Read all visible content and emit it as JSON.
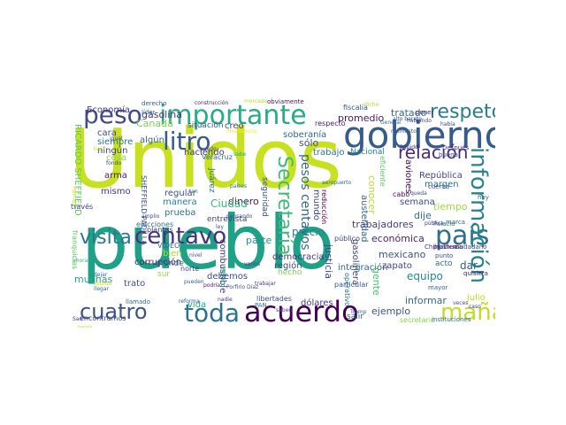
{
  "words": [
    {
      "text": "Unidos",
      "color": "#c7e020"
    },
    {
      "text": "pueblo",
      "color": "#1fa187"
    },
    {
      "text": "gobierno",
      "color": "#365c8d"
    },
    {
      "text": "importante",
      "color": "#27ad81"
    },
    {
      "text": "acuerdo",
      "color": "#440154"
    },
    {
      "text": "toda",
      "color": "#2c728e"
    },
    {
      "text": "cuatro",
      "color": "#3b528b"
    },
    {
      "text": "centavo",
      "color": "#46327e"
    },
    {
      "text": "país",
      "color": "#2d708e"
    },
    {
      "text": "peso",
      "color": "#3e4a89"
    },
    {
      "text": "litro",
      "color": "#38598c"
    },
    {
      "text": "respeto",
      "color": "#287d8e"
    },
    {
      "text": "información",
      "color": "#25848e"
    },
    {
      "text": "mañana",
      "color": "#bddf26"
    },
    {
      "text": "visita",
      "color": "#2a788e"
    },
    {
      "text": "Secretaría",
      "color": "#3fbc73"
    },
    {
      "text": "relación",
      "color": "#472d7b"
    },
    {
      "text": "pesos centavos",
      "color": "#31688e"
    },
    {
      "text": "gasolina",
      "color": "#453781"
    },
    {
      "text": "Economía",
      "color": "#414487"
    },
    {
      "text": "tratado",
      "color": "#2f6c8e"
    },
    {
      "text": "promedio",
      "color": "#481668"
    },
    {
      "text": "soberanía",
      "color": "#2f6c8e"
    },
    {
      "text": "sólo",
      "color": "#3b528b"
    },
    {
      "text": "trabajo",
      "color": "#2a788e"
    },
    {
      "text": "Canadá",
      "color": "#7ad151"
    },
    {
      "text": "dinero",
      "color": "#48186a"
    },
    {
      "text": "precio",
      "color": "#26828e"
    },
    {
      "text": "trabajadores",
      "color": "#443a83"
    },
    {
      "text": "económica",
      "color": "#482576"
    },
    {
      "text": "mexicano",
      "color": "#3a548c"
    },
    {
      "text": "semana",
      "color": "#3e4989"
    },
    {
      "text": "margen",
      "color": "#2c728e"
    },
    {
      "text": "tiempo",
      "color": "#9fda3a"
    },
    {
      "text": "equipo",
      "color": "#23898e"
    },
    {
      "text": "ejemplo",
      "color": "#3b528b"
    },
    {
      "text": "informar",
      "color": "#31688e"
    },
    {
      "text": "dar",
      "color": "#365c8d"
    },
    {
      "text": "julio",
      "color": "#c2df23"
    },
    {
      "text": "conocer",
      "color": "#b5de2b"
    },
    {
      "text": "Ciudad",
      "color": "#35b779"
    },
    {
      "text": "manera",
      "color": "#25838e"
    },
    {
      "text": "prueba",
      "color": "#2a788e"
    },
    {
      "text": "corrupción",
      "color": "#482878"
    },
    {
      "text": "combustible",
      "color": "#443983"
    },
    {
      "text": "democracia",
      "color": "#463480"
    },
    {
      "text": "región",
      "color": "#3e4a89"
    },
    {
      "text": "justicia",
      "color": "#404688"
    },
    {
      "text": "gasolinera",
      "color": "#404588"
    },
    {
      "text": "integración",
      "color": "#31688e"
    },
    {
      "text": "zapato",
      "color": "#3f4788"
    },
    {
      "text": "muchas",
      "color": "#22a785"
    },
    {
      "text": "parte",
      "color": "#1f978b"
    },
    {
      "text": "debemos",
      "color": "#3e4c8a"
    },
    {
      "text": "dije",
      "color": "#2e6f8e"
    },
    {
      "text": "trato",
      "color": "#3b528b"
    },
    {
      "text": "mundo",
      "color": "#414487"
    },
    {
      "text": "dólares",
      "color": "#443983"
    },
    {
      "text": "gente",
      "color": "#4ac16d"
    },
    {
      "text": "arma",
      "color": "#481a6c"
    },
    {
      "text": "mismo",
      "color": "#46337f"
    },
    {
      "text": "siempre",
      "color": "#2d718e"
    },
    {
      "text": "cara",
      "color": "#3e4a89"
    },
    {
      "text": "ningún",
      "color": "#433e85"
    },
    {
      "text": "haciendo",
      "color": "#453882"
    },
    {
      "text": "algún",
      "color": "#31688e"
    },
    {
      "text": "situación",
      "color": "#3a548c"
    },
    {
      "text": "creo",
      "color": "#3e4989"
    },
    {
      "text": "República",
      "color": "#3f4889"
    },
    {
      "text": "Nacional",
      "color": "#26828e"
    },
    {
      "text": "aviones",
      "color": "#440154"
    },
    {
      "text": "austeridad",
      "color": "#32648e"
    },
    {
      "text": "seguridad",
      "color": "#3a548c"
    },
    {
      "text": "hecho",
      "color": "#7ad151"
    },
    {
      "text": "entrevista",
      "color": "#433e85"
    },
    {
      "text": "regular",
      "color": "#3b528b"
    },
    {
      "text": "bien",
      "color": "#a5db36"
    },
    {
      "text": "cosa",
      "color": "#8ed645"
    },
    {
      "text": "vida",
      "color": "#23a983"
    },
    {
      "text": "grande",
      "color": "#31688e"
    },
    {
      "text": "salir",
      "color": "#2f6c8e"
    },
    {
      "text": "eficiente",
      "color": "#56c667"
    },
    {
      "text": "reducción",
      "color": "#440154"
    },
    {
      "text": "fiscalía",
      "color": "#3a548c"
    },
    {
      "text": "respecto",
      "color": "#481c6e"
    },
    {
      "text": "obviamente",
      "color": "#481467"
    },
    {
      "text": "libertades",
      "color": "#3c4f8a"
    },
    {
      "text": "PAN",
      "color": "#2d708e"
    },
    {
      "text": "VIDEO",
      "color": "#2f6b8e"
    },
    {
      "text": "México",
      "color": "#29af7f"
    },
    {
      "text": "RICARDO SHEFFIELD",
      "color": "#5ec962"
    },
    {
      "text": "SHEFFIELD PADILLA",
      "color": "#3b528b"
    },
    {
      "text": "Juárez",
      "color": "#2a788e"
    },
    {
      "text": "Veracruz",
      "color": "#2d718e"
    },
    {
      "text": "plantas",
      "color": "#453882"
    },
    {
      "text": "norte",
      "color": "#3e4a89"
    },
    {
      "text": "sur",
      "color": "#95d840"
    },
    {
      "text": "operativo",
      "color": "#2e6e8e"
    },
    {
      "text": "particular",
      "color": "#38588c"
    },
    {
      "text": "acto",
      "color": "#2c728e"
    },
    {
      "text": "través",
      "color": "#433e85"
    },
    {
      "text": "elecciones",
      "color": "#2e6f8e"
    },
    {
      "text": "líder",
      "color": "#31678e"
    },
    {
      "text": "llamado",
      "color": "#32658e"
    },
    {
      "text": "encontramos",
      "color": "#3b518b"
    },
    {
      "text": "secretario",
      "color": "#86d549"
    },
    {
      "text": "instituciones",
      "color": "#2f6b8e"
    },
    {
      "text": "público",
      "color": "#414287"
    },
    {
      "text": "Palacio",
      "color": "#2a768e"
    },
    {
      "text": "cabo",
      "color": "#470e61"
    },
    {
      "text": "buena",
      "color": "#3b518b"
    },
    {
      "text": "quisiera",
      "color": "#482173"
    },
    {
      "text": "problema",
      "color": "#481d6f"
    },
    {
      "text": "cuenta",
      "color": "#3d4e8a"
    },
    {
      "text": "marca",
      "color": "#31688e"
    },
    {
      "text": "hoy",
      "color": "#2c728e"
    },
    {
      "text": "poner",
      "color": "#482576"
    },
    {
      "text": "Después",
      "color": "#443a83"
    },
    {
      "text": "Rápido",
      "color": "#472c7a"
    },
    {
      "text": "Chihuahua",
      "color": "#453781"
    },
    {
      "text": "ciudadano",
      "color": "#3e4989"
    },
    {
      "text": "mayor",
      "color": "#34618d"
    },
    {
      "text": "punto",
      "color": "#3d4d8a"
    },
    {
      "text": "Pemex",
      "color": "#c0df25"
    },
    {
      "text": "franquicias",
      "color": "#5cc863"
    },
    {
      "text": "derecho",
      "color": "#375a8c"
    },
    {
      "text": "construcción",
      "color": "#482374"
    },
    {
      "text": "mercado",
      "color": "#bade28"
    },
    {
      "text": "Presidencia",
      "color": "#fde725"
    },
    {
      "text": "pensando",
      "color": "#3b528b"
    },
    {
      "text": "puedo",
      "color": "#3e4a89"
    },
    {
      "text": "saben",
      "color": "#414287"
    },
    {
      "text": "trabajar",
      "color": "#433d84"
    },
    {
      "text": "reforma",
      "color": "#31678e"
    },
    {
      "text": "nadie",
      "color": "#463480"
    },
    {
      "text": "ley",
      "color": "#3b528b"
    },
    {
      "text": "pueden",
      "color": "#34618d"
    },
    {
      "text": "veces",
      "color": "#3e4989"
    },
    {
      "text": "Porfirio Díaz",
      "color": "#3b528b"
    },
    {
      "text": "Tramp",
      "color": "#375b8d"
    },
    {
      "text": "San",
      "color": "#453781"
    },
    {
      "text": "barata",
      "color": "#b8de29"
    },
    {
      "text": "tan",
      "color": "#2d718e"
    },
    {
      "text": "varios",
      "color": "#404688"
    },
    {
      "text": "países",
      "color": "#2a788e"
    },
    {
      "text": "sabe",
      "color": "#25ab82"
    },
    {
      "text": "podría",
      "color": "#481769"
    },
    {
      "text": "aeropuerto",
      "color": "#31688e"
    },
    {
      "text": "pública",
      "color": "#46327e"
    },
    {
      "text": "queda",
      "color": "#3f4788"
    },
    {
      "text": "General",
      "color": "#2a788e"
    },
    {
      "text": "alto barato",
      "color": "#3d4e8a"
    },
    {
      "text": "había",
      "color": "#433e85"
    },
    {
      "text": "hablando",
      "color": "#3e4989"
    },
    {
      "text": "dicho",
      "color": "#a8db34"
    },
    {
      "text": "momento",
      "color": "#3b528b"
    },
    {
      "text": "bajo",
      "color": "#bddf26"
    },
    {
      "text": "igual",
      "color": "#3f4788"
    },
    {
      "text": "fondo",
      "color": "#414487"
    },
    {
      "text": "amplio",
      "color": "#3e4c8a"
    },
    {
      "text": "asunto",
      "color": "#cae11f"
    },
    {
      "text": "llegar",
      "color": "#2f6c8e"
    },
    {
      "text": "dejar",
      "color": "#31688e"
    },
    {
      "text": "ahora",
      "color": "#37b878"
    },
    {
      "text": "nivel",
      "color": "#3b528b"
    },
    {
      "text": "caso",
      "color": "#46327e"
    }
  ]
}
